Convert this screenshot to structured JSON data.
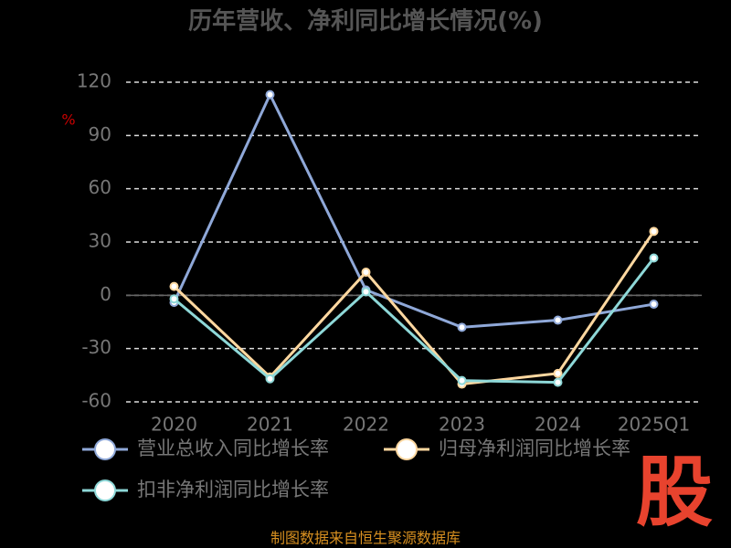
{
  "chart_data": {
    "type": "line",
    "title": "历年营收、净利同比增长情况(%)",
    "y_label": "%",
    "categories": [
      "2020",
      "2021",
      "2022",
      "2023",
      "2024",
      "2025Q1"
    ],
    "series": [
      {
        "name": "营业总收入同比增长率",
        "color": "#8fa8d8",
        "values": [
          -4,
          113,
          3,
          -18,
          -14,
          -5
        ]
      },
      {
        "name": "归母净利润同比增长率",
        "color": "#ffd8a0",
        "values": [
          5,
          -46,
          13,
          -50,
          -44,
          36
        ]
      },
      {
        "name": "扣非净利润同比增长率",
        "color": "#8ed8d8",
        "values": [
          -2,
          -47,
          2,
          -48,
          -49,
          21
        ]
      }
    ],
    "ylim": [
      -60,
      120
    ],
    "yticks": [
      -60,
      -30,
      0,
      30,
      60,
      90,
      120
    ],
    "grid": true,
    "source": "制图数据来自恒生聚源数据库",
    "logo": "股"
  }
}
